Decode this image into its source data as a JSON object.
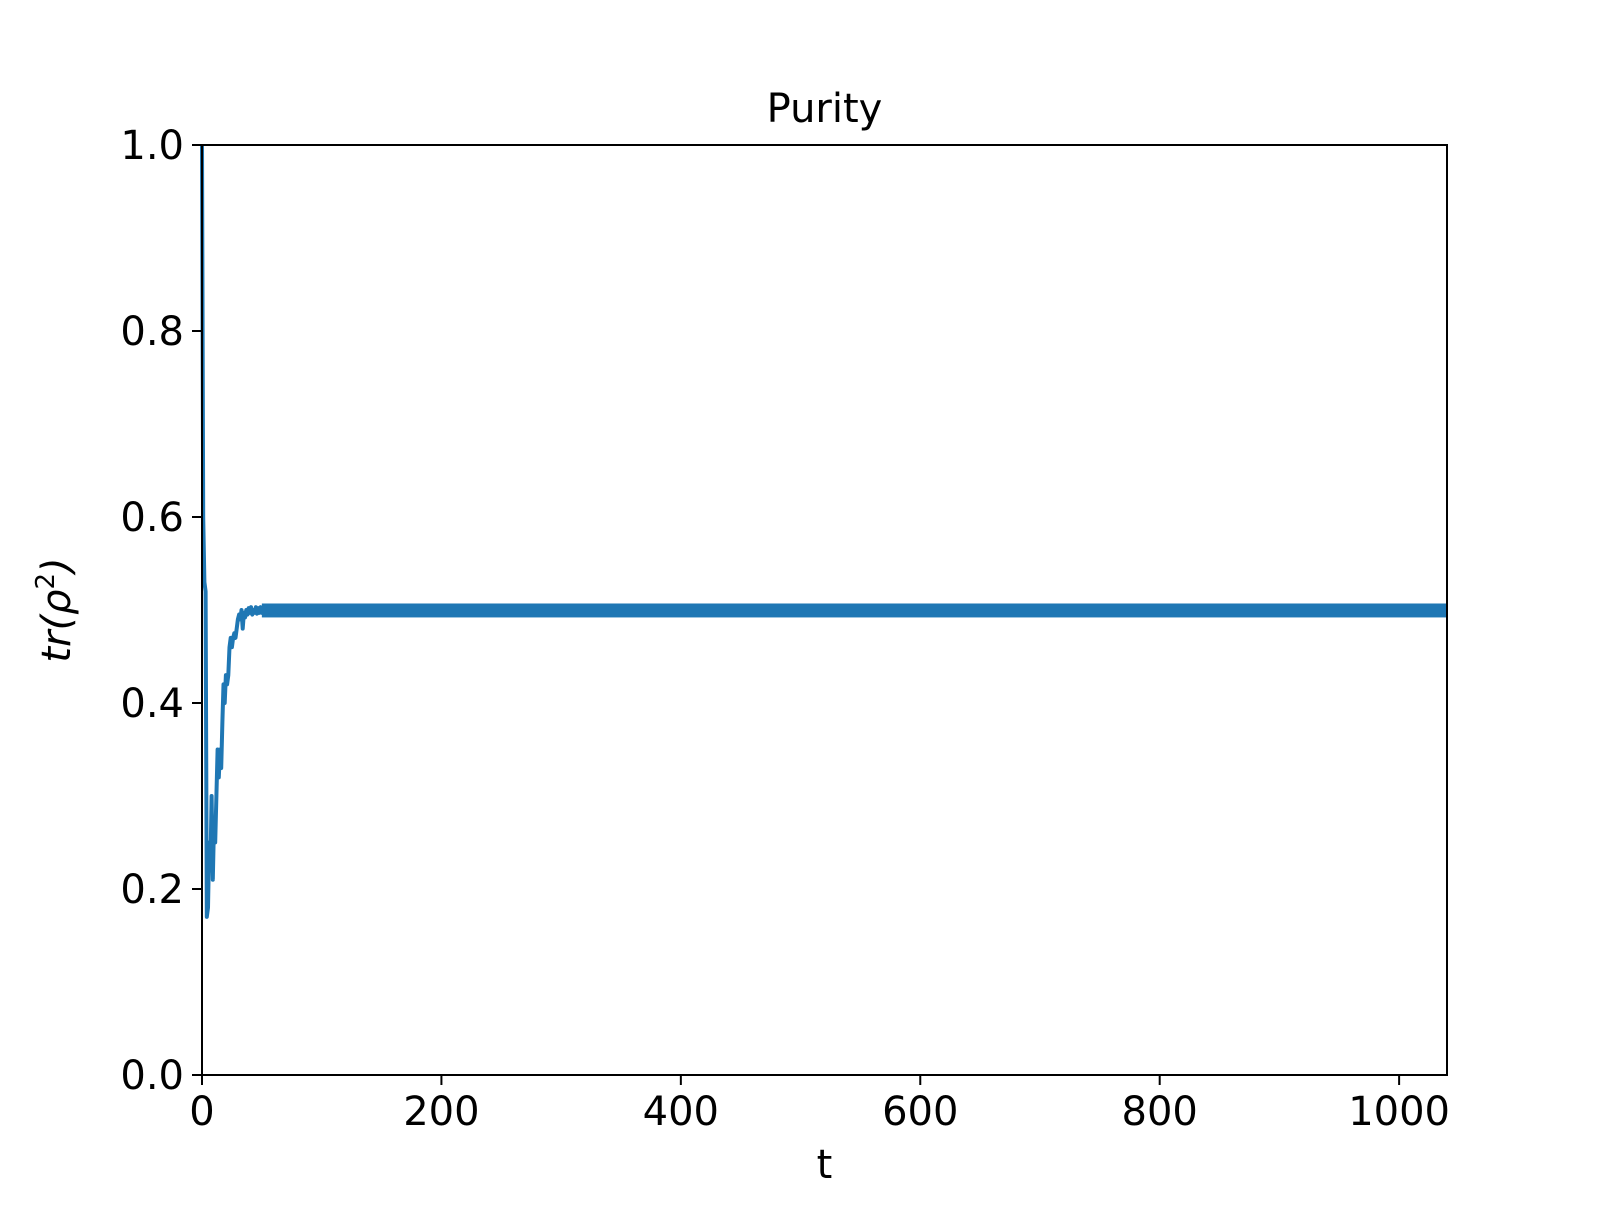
{
  "chart_data": {
    "type": "line",
    "title": "Purity",
    "xlabel": "t",
    "ylabel_base": "tr(ρ",
    "ylabel_sup": "2",
    "ylabel_close": ")",
    "xlim": [
      0,
      1040
    ],
    "ylim": [
      0,
      1
    ],
    "xticks": [
      0,
      200,
      400,
      600,
      800,
      1000
    ],
    "xtick_labels": [
      "0",
      "200",
      "400",
      "600",
      "800",
      "1000"
    ],
    "yticks": [
      0,
      0.2,
      0.4,
      0.6,
      0.8,
      1.0
    ],
    "ytick_labels": [
      "0.0",
      "0.2",
      "0.4",
      "0.6",
      "0.8",
      "1.0"
    ],
    "grid": false,
    "series": [
      {
        "color": "#1f77b4",
        "x": [
          0,
          1,
          2,
          3,
          4,
          5,
          6,
          7,
          8,
          9,
          10,
          11,
          12,
          13,
          14,
          15,
          16,
          17,
          18,
          19,
          20,
          21,
          22,
          23,
          24,
          25,
          26,
          27,
          28,
          29,
          30,
          31,
          32,
          33,
          34,
          35,
          36,
          37,
          38,
          39,
          40,
          41,
          42,
          43,
          44,
          45,
          46,
          47,
          48,
          49,
          50,
          52,
          54,
          56,
          58,
          60,
          65,
          70,
          80,
          100,
          200,
          300,
          400,
          500,
          600,
          700,
          800,
          900,
          1000,
          1040
        ],
        "y": [
          1.0,
          0.6,
          0.53,
          0.52,
          0.17,
          0.18,
          0.25,
          0.22,
          0.3,
          0.21,
          0.27,
          0.25,
          0.3,
          0.35,
          0.32,
          0.35,
          0.33,
          0.38,
          0.42,
          0.4,
          0.43,
          0.42,
          0.43,
          0.46,
          0.47,
          0.46,
          0.47,
          0.475,
          0.47,
          0.48,
          0.49,
          0.495,
          0.49,
          0.5,
          0.48,
          0.497,
          0.492,
          0.5,
          0.495,
          0.502,
          0.497,
          0.503,
          0.495,
          0.5,
          0.497,
          0.503,
          0.496,
          0.502,
          0.497,
          0.503,
          0.497,
          0.503,
          0.496,
          0.503,
          0.497,
          0.503,
          0.497,
          0.503,
          0.497,
          0.5,
          0.5,
          0.5,
          0.5,
          0.5,
          0.5,
          0.5,
          0.5,
          0.5,
          0.5,
          0.5
        ],
        "band_from_x": 50,
        "band_low": 0.492,
        "band_high": 0.507
      }
    ]
  }
}
